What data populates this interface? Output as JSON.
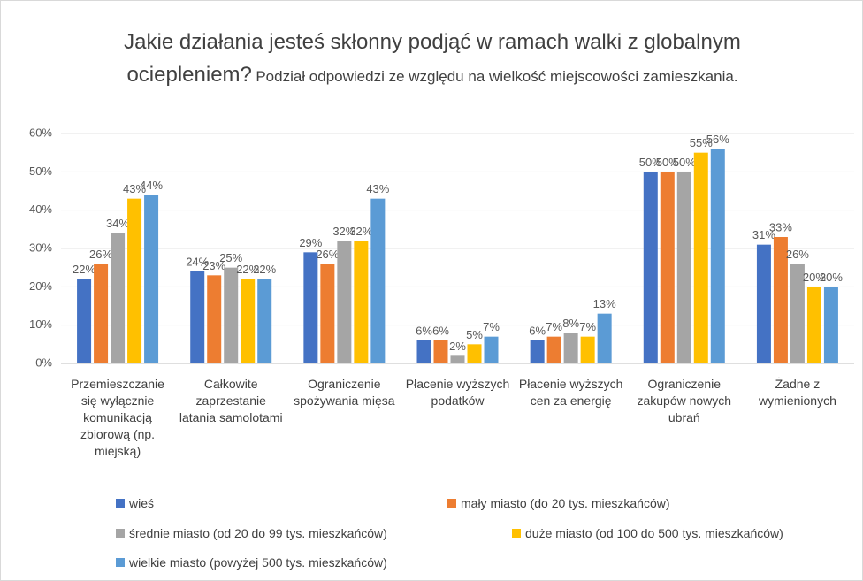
{
  "chart_data": {
    "type": "bar",
    "title": "Jakie działania jesteś skłonny podjąć w ramach walki z globalnym ociepleniem?",
    "subtitle": "Podział odpowiedzi ze względu na wielkość miejscowości zamieszkania.",
    "categories": [
      "Przemieszczanie się wyłącznie komunikacją zbiorową (np. miejską)",
      "Całkowite zaprzestanie latania samolotami",
      "Ograniczenie spożywania mięsa",
      "Płacenie wyższych podatków",
      "Płacenie wyższych cen za energię",
      "Ograniczenie zakupów nowych ubrań",
      "Żadne z wymienionych"
    ],
    "series": [
      {
        "name": "wieś",
        "color": "#4472c4",
        "values": [
          22,
          24,
          29,
          6,
          6,
          50,
          31
        ],
        "value_labels": [
          "22%",
          "24%",
          "29%",
          "6%",
          "6%",
          "50%",
          "31%"
        ]
      },
      {
        "name": "mały miasto (do 20 tys. mieszkańców)",
        "color": "#ed7d31",
        "values": [
          26,
          23,
          26,
          6,
          7,
          50,
          33
        ],
        "value_labels": [
          "26%",
          "23%",
          "26%",
          "6%",
          "7%",
          "50%",
          "33%"
        ]
      },
      {
        "name": "średnie miasto (od 20 do 99 tys. mieszkańców)",
        "color": "#a5a5a5",
        "values": [
          34,
          25,
          32,
          2,
          8,
          50,
          26
        ],
        "value_labels": [
          "34%",
          "25%",
          "32%",
          "2%",
          "8%",
          "50%",
          "26%"
        ]
      },
      {
        "name": "duże miasto (od 100 do 500 tys. mieszkańców)",
        "color": "#ffc000",
        "values": [
          43,
          22,
          32,
          5,
          7,
          55,
          20
        ],
        "value_labels": [
          "43%",
          "22%",
          "32%",
          "5%",
          "7%",
          "55%",
          "20%"
        ]
      },
      {
        "name": "wielkie miasto (powyżej 500 tys. mieszkańców)",
        "color": "#5b9bd5",
        "values": [
          44,
          22,
          43,
          7,
          13,
          56,
          20
        ],
        "value_labels": [
          "44%",
          "22%",
          "43%",
          "7%",
          "13%",
          "56%",
          "20%"
        ]
      }
    ],
    "ylim": [
      0,
      60
    ],
    "yticks": [
      {
        "value": 0,
        "label": "0%"
      },
      {
        "value": 10,
        "label": "10%"
      },
      {
        "value": 20,
        "label": "20%"
      },
      {
        "value": 30,
        "label": "30%"
      },
      {
        "value": 40,
        "label": "40%"
      },
      {
        "value": 50,
        "label": "50%"
      },
      {
        "value": 60,
        "label": "60%"
      }
    ],
    "grid": true
  }
}
